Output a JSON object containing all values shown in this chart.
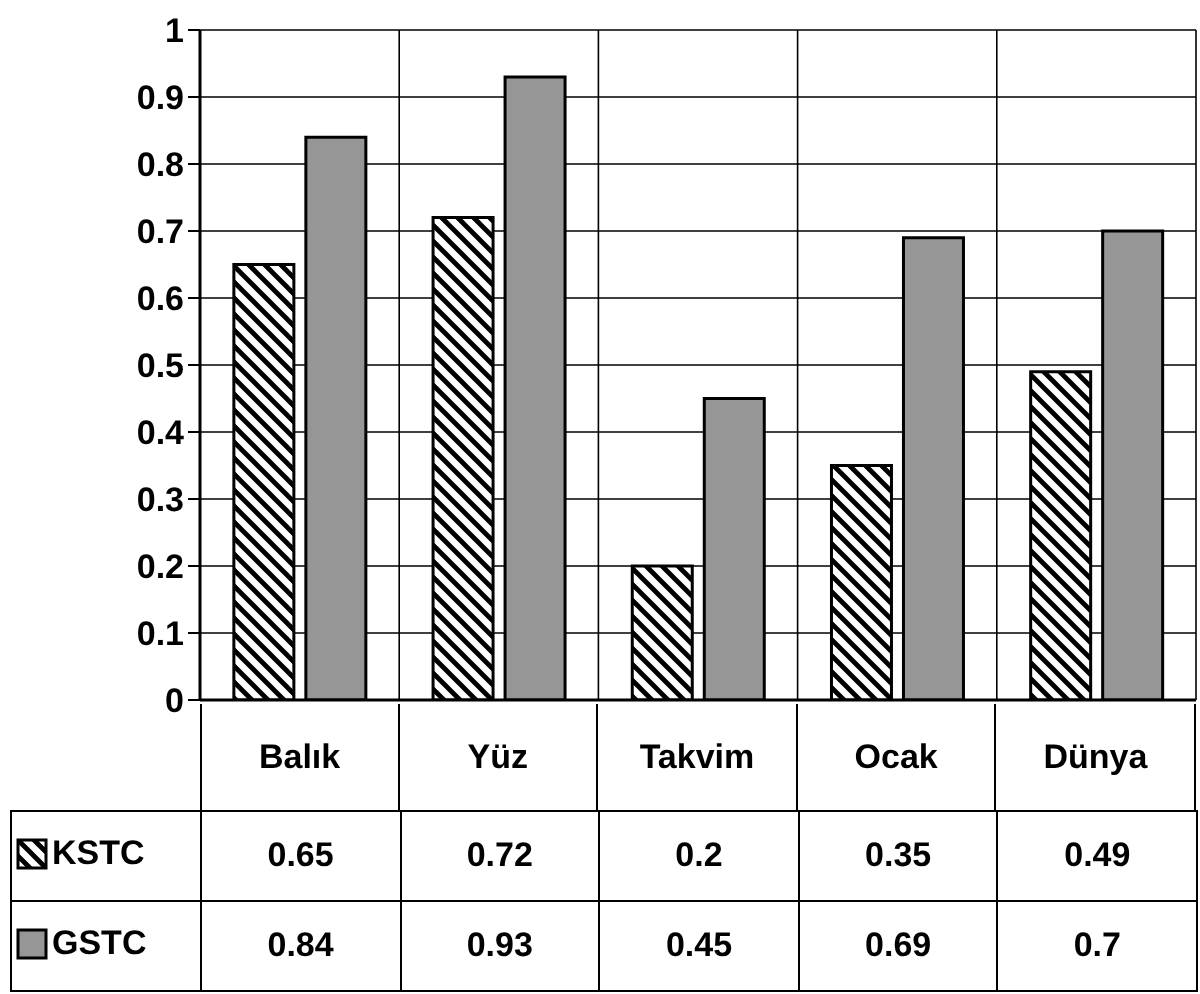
{
  "chart_data": {
    "type": "bar",
    "categories": [
      "Balık",
      "Yüz",
      "Takvim",
      "Ocak",
      "Dünya"
    ],
    "series": [
      {
        "name": "KSTC",
        "color": "#000000",
        "values": [
          0.65,
          0.72,
          0.2,
          0.35,
          0.49
        ]
      },
      {
        "name": "GSTC",
        "color": "#969696",
        "values": [
          0.84,
          0.93,
          0.45,
          0.69,
          0.7
        ]
      }
    ],
    "ylim": [
      0,
      1
    ],
    "yticks": [
      0,
      0.1,
      0.2,
      0.3,
      0.4,
      0.5,
      0.6,
      0.7,
      0.8,
      0.9,
      1
    ],
    "grid": true,
    "legend": "bottom",
    "data_labels": true
  }
}
